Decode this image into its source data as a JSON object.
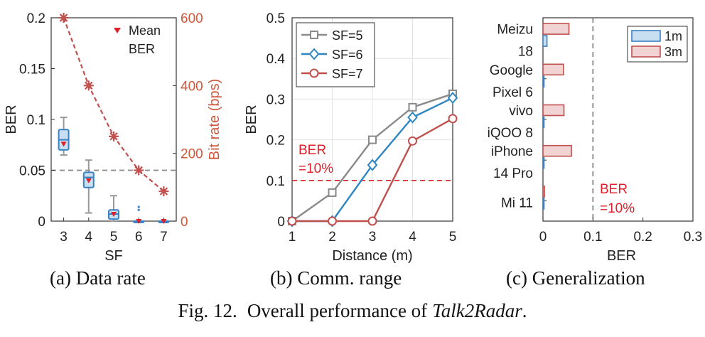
{
  "figure_caption": {
    "prefix": "Fig. 12.",
    "text": "Overall performance of",
    "name": "Talk2Radar",
    "suffix": "."
  },
  "chart_data": [
    {
      "id": "a",
      "type": "box+line",
      "caption": "(a)  Data rate",
      "xlabel": "SF",
      "ylabel": "BER",
      "ylabel_right": "Bit rate (bps)",
      "x": [
        3,
        4,
        5,
        6,
        7
      ],
      "ylim": [
        0,
        0.2
      ],
      "yticks": [
        "0",
        "0.05",
        "0.1",
        "0.15",
        "0.2"
      ],
      "ylim_right": [
        0,
        600
      ],
      "yticks_right": [
        "0",
        "200",
        "400",
        "600"
      ],
      "threshold": 0.05,
      "legend": {
        "marker_label": "Mean",
        "series_label": "BER",
        "position": "top-right"
      },
      "box_series": [
        {
          "sf": 3,
          "min": 0.065,
          "q1": 0.07,
          "median": 0.08,
          "q3": 0.09,
          "max": 0.102,
          "mean": 0.076
        },
        {
          "sf": 4,
          "min": 0.008,
          "q1": 0.033,
          "median": 0.043,
          "q3": 0.048,
          "max": 0.06,
          "mean": 0.04
        },
        {
          "sf": 5,
          "min": 0.0,
          "q1": 0.002,
          "median": 0.007,
          "q3": 0.011,
          "max": 0.025,
          "mean": 0.007
        },
        {
          "sf": 6,
          "min": 0.0,
          "q1": 0.0,
          "median": 0.0,
          "q3": 0.0,
          "max": 0.0,
          "mean": 0.0,
          "outliers": [
            0.011,
            0.014
          ]
        },
        {
          "sf": 7,
          "min": 0.0,
          "q1": 0.0,
          "median": 0.0,
          "q3": 0.0,
          "max": 0.0,
          "mean": 0.0
        }
      ],
      "bitrate_series": {
        "name": "Bit rate (bps)",
        "values": [
          600,
          400,
          250,
          150,
          88
        ]
      },
      "colors": {
        "box_edge": "#3b82c4",
        "box_fill": "#c8dff2",
        "whisker": "#999999",
        "mean": "#e0202a",
        "bitrate": "#c0504d",
        "threshold": "#888888"
      }
    },
    {
      "id": "b",
      "type": "line",
      "caption": "(b)  Comm. range",
      "xlabel": "Distance (m)",
      "ylabel": "BER",
      "x": [
        1,
        2,
        3,
        4,
        5
      ],
      "xticks": [
        "1",
        "2",
        "3",
        "4",
        "5"
      ],
      "ylim": [
        0,
        0.5
      ],
      "yticks": [
        "0",
        "0.1",
        "0.2",
        "0.3",
        "0.4",
        "0.5"
      ],
      "threshold": 0.1,
      "annotation": [
        "BER",
        "=10%"
      ],
      "legend_position": "top-left",
      "series": [
        {
          "name": "SF=5",
          "marker": "square",
          "color": "#8a8a8a",
          "values": [
            0.0,
            0.07,
            0.2,
            0.28,
            0.313
          ]
        },
        {
          "name": "SF=6",
          "marker": "diamond",
          "color": "#2f86c0",
          "values": [
            0.0,
            0.0,
            0.138,
            0.255,
            0.303
          ]
        },
        {
          "name": "SF=7",
          "marker": "circle",
          "color": "#c0504d",
          "values": [
            0.0,
            0.0,
            0.0,
            0.197,
            0.252
          ]
        }
      ]
    },
    {
      "id": "c",
      "type": "horizontal-bar",
      "caption": "(c)  Generalization",
      "xlabel": "BER",
      "xlim": [
        0,
        0.3
      ],
      "xticks": [
        "0",
        "0.1",
        "0.2",
        "0.3"
      ],
      "threshold": 0.1,
      "annotation": [
        "BER",
        "=10%"
      ],
      "legend_position": "top-right",
      "categories": [
        [
          "Meizu",
          "18"
        ],
        [
          "Google",
          "Pixel 6"
        ],
        [
          "vivo",
          "iQOO 8"
        ],
        [
          "iPhone",
          "14 Pro"
        ],
        [
          "Mi 11"
        ]
      ],
      "series": [
        {
          "name": "1m",
          "color_fill": "#c8dff2",
          "color_edge": "#3b82c4",
          "values": [
            0.008,
            0.001,
            0.001,
            0.001,
            0.001
          ]
        },
        {
          "name": "3m",
          "color_fill": "#f2d3d3",
          "color_edge": "#c0504d",
          "values": [
            0.052,
            0.041,
            0.042,
            0.057,
            0.003
          ]
        }
      ]
    }
  ]
}
